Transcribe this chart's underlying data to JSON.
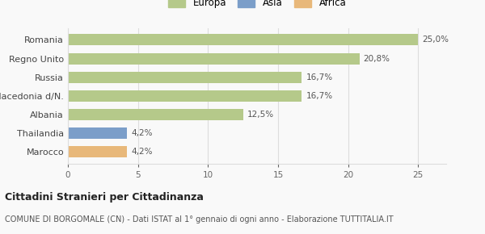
{
  "categories": [
    "Marocco",
    "Thailandia",
    "Albania",
    "Macedonia d/N.",
    "Russia",
    "Regno Unito",
    "Romania"
  ],
  "values": [
    4.2,
    4.2,
    12.5,
    16.7,
    16.7,
    20.8,
    25.0
  ],
  "labels": [
    "4,2%",
    "4,2%",
    "12,5%",
    "16,7%",
    "16,7%",
    "20,8%",
    "25,0%"
  ],
  "colors": [
    "#e8b87a",
    "#7b9ec9",
    "#b5c98a",
    "#b5c98a",
    "#b5c98a",
    "#b5c98a",
    "#b5c98a"
  ],
  "legend_items": [
    {
      "label": "Europa",
      "color": "#b5c98a"
    },
    {
      "label": "Asia",
      "color": "#7b9ec9"
    },
    {
      "label": "Africa",
      "color": "#e8b87a"
    }
  ],
  "xlim": [
    0,
    27
  ],
  "xticks": [
    0,
    5,
    10,
    15,
    20,
    25
  ],
  "title": "Cittadini Stranieri per Cittadinanza",
  "subtitle": "COMUNE DI BORGOMALE (CN) - Dati ISTAT al 1° gennaio di ogni anno - Elaborazione TUTTITALIA.IT",
  "background_color": "#f9f9f9",
  "bar_height": 0.6,
  "grid_color": "#dddddd",
  "label_fontsize": 7.5,
  "ytick_fontsize": 8,
  "xtick_fontsize": 7.5,
  "title_fontsize": 9,
  "subtitle_fontsize": 7
}
